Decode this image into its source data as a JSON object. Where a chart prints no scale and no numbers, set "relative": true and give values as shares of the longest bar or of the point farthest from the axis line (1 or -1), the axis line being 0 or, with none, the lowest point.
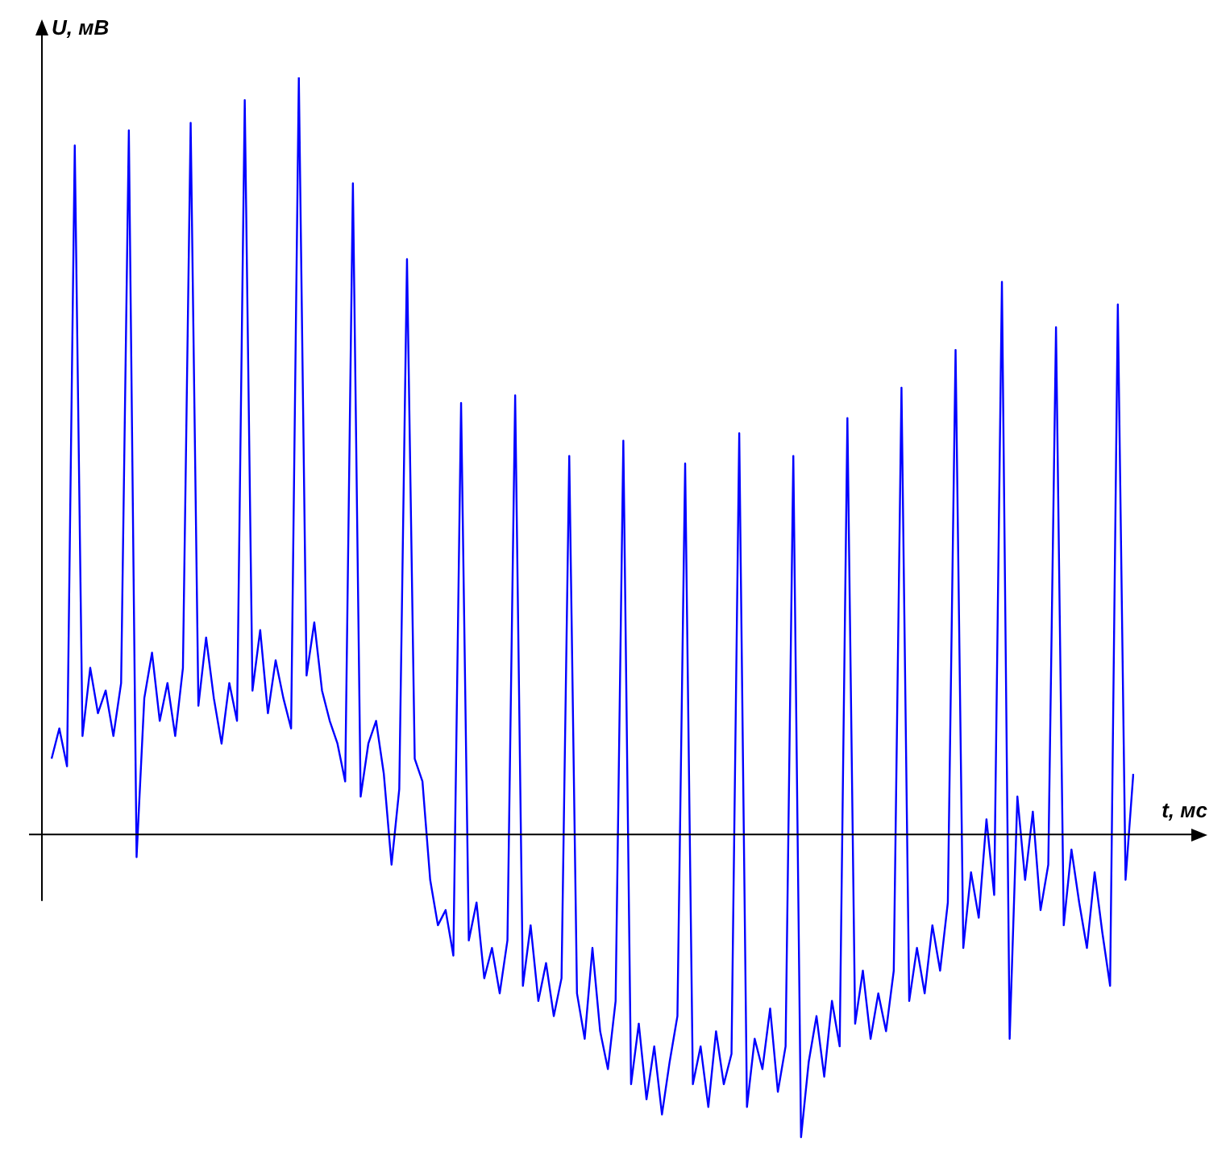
{
  "chart_data": {
    "type": "line",
    "relative": true,
    "xlabel": "t, мс",
    "ylabel": "U, мВ",
    "color": "#0000ff",
    "marker": "none",
    "legend": false,
    "categories": [
      null,
      null,
      null,
      null,
      null,
      null,
      null,
      null,
      null,
      null,
      null,
      null,
      null,
      null,
      null,
      null,
      null,
      null,
      null,
      null,
      null,
      null,
      null,
      null,
      null,
      null,
      null,
      null,
      null,
      null,
      null,
      null,
      null,
      null,
      null,
      null,
      null,
      null,
      null,
      null,
      null,
      null,
      null,
      null,
      null,
      null,
      null,
      null,
      null,
      null,
      null,
      null,
      null,
      null,
      null,
      null,
      null,
      null,
      null,
      null,
      null,
      null,
      null,
      null,
      null,
      null,
      null,
      null,
      null,
      null,
      null,
      null,
      null,
      null,
      null,
      null,
      null,
      null,
      null,
      null,
      null,
      null,
      null,
      null,
      null,
      null,
      null,
      null,
      null,
      null,
      null,
      null,
      null,
      null,
      null,
      null,
      null,
      null,
      null,
      null,
      null,
      null,
      null,
      null,
      null,
      null,
      null,
      null,
      null,
      null,
      null,
      null,
      null,
      null,
      null,
      null,
      null,
      null,
      null,
      null,
      null,
      null,
      null,
      null,
      null,
      null,
      null,
      null,
      null,
      null,
      null,
      null,
      null,
      null,
      null,
      null,
      null,
      null,
      null,
      null,
      null
    ],
    "values": [
      0.1,
      0.14,
      0.09,
      0.91,
      0.13,
      0.22,
      0.16,
      0.19,
      0.13,
      0.2,
      0.93,
      -0.03,
      0.18,
      0.24,
      0.15,
      0.2,
      0.13,
      0.22,
      0.94,
      0.17,
      0.26,
      0.18,
      0.12,
      0.2,
      0.15,
      0.97,
      0.19,
      0.27,
      0.16,
      0.23,
      0.18,
      0.14,
      1.0,
      0.21,
      0.28,
      0.19,
      0.15,
      0.12,
      0.07,
      0.86,
      0.05,
      0.12,
      0.15,
      0.08,
      -0.04,
      0.06,
      0.76,
      0.1,
      0.07,
      -0.06,
      -0.12,
      -0.1,
      -0.16,
      0.57,
      -0.14,
      -0.09,
      -0.19,
      -0.15,
      -0.21,
      -0.14,
      0.58,
      -0.2,
      -0.12,
      -0.22,
      -0.17,
      -0.24,
      -0.19,
      0.5,
      -0.21,
      -0.27,
      -0.15,
      -0.26,
      -0.31,
      -0.22,
      0.52,
      -0.33,
      -0.25,
      -0.35,
      -0.28,
      -0.37,
      -0.3,
      -0.24,
      0.49,
      -0.33,
      -0.28,
      -0.36,
      -0.26,
      -0.33,
      -0.29,
      0.53,
      -0.36,
      -0.27,
      -0.31,
      -0.23,
      -0.34,
      -0.28,
      0.5,
      -0.4,
      -0.3,
      -0.24,
      -0.32,
      -0.22,
      -0.28,
      0.55,
      -0.25,
      -0.18,
      -0.27,
      -0.21,
      -0.26,
      -0.18,
      0.59,
      -0.22,
      -0.15,
      -0.21,
      -0.12,
      -0.18,
      -0.09,
      0.64,
      -0.15,
      -0.05,
      -0.11,
      0.02,
      -0.08,
      0.73,
      -0.27,
      0.05,
      -0.06,
      0.03,
      -0.1,
      -0.04,
      0.67,
      -0.12,
      -0.02,
      -0.09,
      -0.15,
      -0.05,
      -0.13,
      -0.2,
      0.7,
      -0.06,
      0.08
    ]
  }
}
